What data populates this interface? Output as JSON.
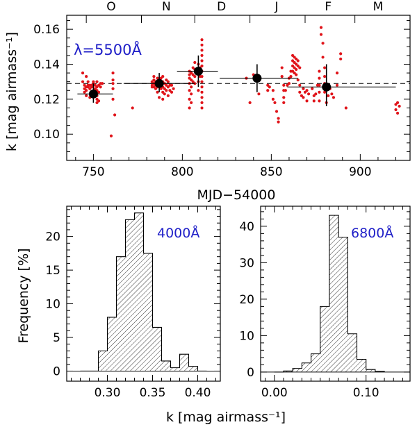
{
  "colors": {
    "axis": "#000000",
    "points": "#e0141a",
    "annotation": "#2020c8",
    "hatch": "#000000"
  },
  "chart_data": [
    {
      "id": "top",
      "type": "scatter",
      "title": "",
      "xlabel": "MJD−54000",
      "ylabel": "k [mag airmass⁻¹]",
      "annotation": "λ=5500Å",
      "xlim": [
        735,
        928
      ],
      "ylim": [
        0.085,
        0.168
      ],
      "xticks": [
        750,
        800,
        850,
        900
      ],
      "xtick_labels": [
        "750",
        "800",
        "850",
        "900"
      ],
      "yticks": [
        0.1,
        0.12,
        0.14,
        0.16
      ],
      "ytick_labels": [
        "0.10",
        "0.12",
        "0.14",
        "0.16"
      ],
      "month_boundaries": [
        746,
        777,
        807,
        838,
        869,
        897
      ],
      "months": [
        {
          "label": "O",
          "x": 760
        },
        {
          "label": "N",
          "x": 791
        },
        {
          "label": "D",
          "x": 822
        },
        {
          "label": "J",
          "x": 853
        },
        {
          "label": "F",
          "x": 882
        },
        {
          "label": "M",
          "x": 910
        }
      ],
      "reference_line": 0.129,
      "nightly_points": [
        [
          744,
          0.135
        ],
        [
          744,
          0.13
        ],
        [
          745,
          0.128
        ],
        [
          745,
          0.126
        ],
        [
          745,
          0.124
        ],
        [
          746,
          0.127
        ],
        [
          746,
          0.125
        ],
        [
          746,
          0.122
        ],
        [
          746,
          0.133
        ],
        [
          747,
          0.128
        ],
        [
          747,
          0.127
        ],
        [
          747,
          0.13
        ],
        [
          748,
          0.128
        ],
        [
          748,
          0.126
        ],
        [
          748,
          0.121
        ],
        [
          749,
          0.128
        ],
        [
          749,
          0.127
        ],
        [
          749,
          0.124
        ],
        [
          750,
          0.13
        ],
        [
          750,
          0.129
        ],
        [
          751,
          0.128
        ],
        [
          751,
          0.126
        ],
        [
          752,
          0.13
        ],
        [
          752,
          0.127
        ],
        [
          752,
          0.125
        ],
        [
          752,
          0.122
        ],
        [
          752,
          0.12
        ],
        [
          752,
          0.118
        ],
        [
          753,
          0.128
        ],
        [
          753,
          0.124
        ],
        [
          753,
          0.119
        ],
        [
          754,
          0.129
        ],
        [
          754,
          0.127
        ],
        [
          755,
          0.129
        ],
        [
          761,
          0.135
        ],
        [
          761,
          0.131
        ],
        [
          761,
          0.129
        ],
        [
          761,
          0.126
        ],
        [
          761,
          0.12
        ],
        [
          760,
          0.099
        ],
        [
          762,
          0.111
        ],
        [
          772,
          0.115
        ],
        [
          783,
          0.13
        ],
        [
          783,
          0.128
        ],
        [
          783,
          0.127
        ],
        [
          784,
          0.133
        ],
        [
          784,
          0.131
        ],
        [
          784,
          0.129
        ],
        [
          784,
          0.127
        ],
        [
          785,
          0.13
        ],
        [
          785,
          0.128
        ],
        [
          785,
          0.126
        ],
        [
          786,
          0.132
        ],
        [
          786,
          0.13
        ],
        [
          786,
          0.127
        ],
        [
          786,
          0.124
        ],
        [
          787,
          0.128
        ],
        [
          787,
          0.121
        ],
        [
          788,
          0.132
        ],
        [
          788,
          0.129
        ],
        [
          788,
          0.126
        ],
        [
          789,
          0.133
        ],
        [
          789,
          0.13
        ],
        [
          789,
          0.127
        ],
        [
          789,
          0.124
        ],
        [
          789,
          0.12
        ],
        [
          790,
          0.129
        ],
        [
          790,
          0.126
        ],
        [
          790,
          0.123
        ],
        [
          791,
          0.131
        ],
        [
          791,
          0.128
        ],
        [
          791,
          0.125
        ],
        [
          792,
          0.13
        ],
        [
          792,
          0.127
        ],
        [
          792,
          0.122
        ],
        [
          793,
          0.128
        ],
        [
          793,
          0.125
        ],
        [
          794,
          0.128
        ],
        [
          794,
          0.124
        ],
        [
          795,
          0.126
        ],
        [
          804,
          0.136
        ],
        [
          804,
          0.134
        ],
        [
          804,
          0.132
        ],
        [
          804,
          0.129
        ],
        [
          804,
          0.125
        ],
        [
          804,
          0.12
        ],
        [
          804,
          0.115
        ],
        [
          805,
          0.135
        ],
        [
          805,
          0.131
        ],
        [
          805,
          0.127
        ],
        [
          805,
          0.123
        ],
        [
          805,
          0.118
        ],
        [
          806,
          0.138
        ],
        [
          806,
          0.134
        ],
        [
          806,
          0.13
        ],
        [
          807,
          0.141
        ],
        [
          807,
          0.137
        ],
        [
          807,
          0.133
        ],
        [
          807,
          0.129
        ],
        [
          809,
          0.14
        ],
        [
          809,
          0.135
        ],
        [
          809,
          0.13
        ],
        [
          809,
          0.125
        ],
        [
          810,
          0.138
        ],
        [
          810,
          0.133
        ],
        [
          811,
          0.154
        ],
        [
          811,
          0.151
        ],
        [
          811,
          0.148
        ],
        [
          811,
          0.145
        ],
        [
          811,
          0.142
        ],
        [
          811,
          0.139
        ],
        [
          811,
          0.136
        ],
        [
          811,
          0.133
        ],
        [
          811,
          0.13
        ],
        [
          811,
          0.127
        ],
        [
          811,
          0.124
        ],
        [
          811,
          0.121
        ],
        [
          811,
          0.118
        ],
        [
          811,
          0.115
        ],
        [
          836,
          0.132
        ],
        [
          838,
          0.118
        ],
        [
          840,
          0.134
        ],
        [
          843,
          0.123
        ],
        [
          848,
          0.128
        ],
        [
          848,
          0.125
        ],
        [
          849,
          0.127
        ],
        [
          851,
          0.125
        ],
        [
          851,
          0.12
        ],
        [
          852,
          0.118
        ],
        [
          853,
          0.113
        ],
        [
          854,
          0.109
        ],
        [
          854,
          0.107
        ],
        [
          856,
          0.138
        ],
        [
          856,
          0.133
        ],
        [
          857,
          0.128
        ],
        [
          857,
          0.125
        ],
        [
          857,
          0.121
        ],
        [
          857,
          0.118
        ],
        [
          858,
          0.125
        ],
        [
          859,
          0.128
        ],
        [
          860,
          0.132
        ],
        [
          860,
          0.129
        ],
        [
          861,
          0.136
        ],
        [
          861,
          0.133
        ],
        [
          862,
          0.145
        ],
        [
          862,
          0.142
        ],
        [
          862,
          0.139
        ],
        [
          862,
          0.136
        ],
        [
          863,
          0.144
        ],
        [
          863,
          0.141
        ],
        [
          863,
          0.138
        ],
        [
          863,
          0.135
        ],
        [
          864,
          0.143
        ],
        [
          864,
          0.14
        ],
        [
          864,
          0.137
        ],
        [
          864,
          0.134
        ],
        [
          865,
          0.142
        ],
        [
          865,
          0.139
        ],
        [
          865,
          0.131
        ],
        [
          866,
          0.138
        ],
        [
          866,
          0.128
        ],
        [
          866,
          0.124
        ],
        [
          867,
          0.122
        ],
        [
          868,
          0.126
        ],
        [
          868,
          0.121
        ],
        [
          869,
          0.124
        ],
        [
          870,
          0.125
        ],
        [
          870,
          0.119
        ],
        [
          871,
          0.123
        ],
        [
          873,
          0.126
        ],
        [
          874,
          0.122
        ],
        [
          874,
          0.119
        ],
        [
          875,
          0.123
        ],
        [
          876,
          0.128
        ],
        [
          877,
          0.136
        ],
        [
          877,
          0.132
        ],
        [
          877,
          0.128
        ],
        [
          877,
          0.124
        ],
        [
          877,
          0.119
        ],
        [
          878,
          0.161
        ],
        [
          878,
          0.157
        ],
        [
          879,
          0.152
        ],
        [
          879,
          0.144
        ],
        [
          880,
          0.138
        ],
        [
          880,
          0.133
        ],
        [
          880,
          0.129
        ],
        [
          880,
          0.124
        ],
        [
          881,
          0.118
        ],
        [
          882,
          0.122
        ],
        [
          883,
          0.126
        ],
        [
          884,
          0.123
        ],
        [
          885,
          0.121
        ],
        [
          887,
          0.135
        ],
        [
          887,
          0.128
        ],
        [
          889,
          0.146
        ],
        [
          889,
          0.143
        ],
        [
          892,
          0.115
        ],
        [
          920,
          0.117
        ],
        [
          920,
          0.114
        ],
        [
          921,
          0.118
        ],
        [
          921,
          0.112
        ],
        [
          922,
          0.116
        ]
      ],
      "monthly_means": [
        {
          "x": 750,
          "y": 0.123,
          "xerr": [
            741,
            761
          ],
          "yerr": [
            0.118,
            0.129
          ]
        },
        {
          "x": 787,
          "y": 0.129,
          "xerr": [
            767,
            807
          ],
          "yerr": [
            0.124,
            0.135
          ]
        },
        {
          "x": 809,
          "y": 0.136,
          "xerr": [
            797,
            820
          ],
          "yerr": [
            0.127,
            0.145
          ]
        },
        {
          "x": 842,
          "y": 0.132,
          "xerr": [
            821,
            865
          ],
          "yerr": [
            0.124,
            0.14
          ]
        },
        {
          "x": 881,
          "y": 0.127,
          "xerr": [
            859,
            920
          ],
          "yerr": [
            0.116,
            0.14
          ]
        }
      ]
    },
    {
      "id": "bottom-left",
      "type": "histogram",
      "annotation": "4000Å",
      "xlabel": "k [mag airmass⁻¹]",
      "ylabel": "Frequency  [%]",
      "xlim": [
        0.255,
        0.425
      ],
      "ylim": [
        -1.5,
        24.5
      ],
      "xticks": [
        0.3,
        0.35,
        0.4
      ],
      "xtick_labels": [
        "0.30",
        "0.35",
        "0.40"
      ],
      "yticks": [
        0,
        5,
        10,
        15,
        20
      ],
      "ytick_labels": [
        "0",
        "5",
        "10",
        "15",
        "20"
      ],
      "bin_width": 0.01,
      "bin_left_edges": [
        0.27,
        0.28,
        0.29,
        0.3,
        0.31,
        0.32,
        0.33,
        0.34,
        0.35,
        0.36,
        0.37,
        0.38,
        0.39,
        0.4
      ],
      "values": [
        0,
        0,
        3.0,
        8.0,
        17.0,
        22.5,
        23.5,
        17.5,
        6.5,
        1.5,
        0.5,
        2.5,
        0.7,
        0
      ]
    },
    {
      "id": "bottom-right",
      "type": "histogram",
      "annotation": "6800Å",
      "xlabel": "",
      "ylabel": "",
      "xlim": [
        -0.015,
        0.148
      ],
      "ylim": [
        -2.5,
        45.5
      ],
      "xticks": [
        0.0,
        0.1
      ],
      "xtick_labels": [
        "0.00",
        "0.10"
      ],
      "yticks": [
        0,
        10,
        20,
        30,
        40
      ],
      "ytick_labels": [
        "0",
        "10",
        "20",
        "30",
        "40"
      ],
      "bin_width": 0.01,
      "bin_left_edges": [
        0.0,
        0.01,
        0.02,
        0.03,
        0.04,
        0.05,
        0.06,
        0.07,
        0.08,
        0.09,
        0.1,
        0.11
      ],
      "values": [
        0.0,
        0.3,
        1.0,
        2.5,
        5.0,
        18.0,
        43.0,
        37.0,
        10.5,
        3.5,
        0.7,
        0.2
      ]
    }
  ]
}
